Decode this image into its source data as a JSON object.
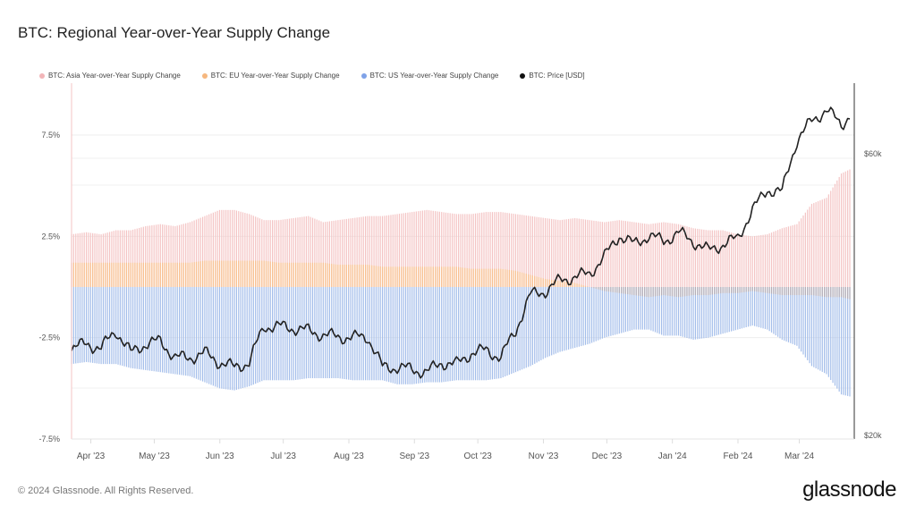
{
  "title": "BTC: Regional Year-over-Year Supply Change",
  "footer": "© 2024 Glassnode. All Rights Reserved.",
  "logo": "glassnode",
  "colors": {
    "asia": "#f4c4c4",
    "eu": "#f8c08e",
    "us": "#a3bdea",
    "price": "#222222"
  },
  "chart_data": {
    "type": "bar+line",
    "title": "BTC: Regional Year-over-Year Supply Change",
    "legend_placement": "top-left",
    "legend": [
      "BTC: Asia Year-over-Year Supply Change",
      "BTC: EU Year-over-Year Supply Change",
      "BTC: US Year-over-Year Supply Change",
      "BTC: Price [USD]"
    ],
    "x_tick_labels": [
      "Apr '23",
      "May '23",
      "Jun '23",
      "Jul '23",
      "Aug '23",
      "Sep '23",
      "Oct '23",
      "Nov '23",
      "Dec '23",
      "Jan '24",
      "Feb '24",
      "Mar '24"
    ],
    "x_range": [
      "2023-03-25",
      "2024-03-27"
    ],
    "y_left": {
      "ticks": [
        "7.5%",
        "2.5%",
        "-2.5%",
        "-7.5%"
      ],
      "tick_values": [
        7.5,
        2.5,
        -2.5,
        -7.5
      ],
      "range": [
        -7.5,
        9.5
      ],
      "unit": "%"
    },
    "y_right": {
      "ticks": [
        "$60k",
        "$20k"
      ],
      "tick_values": [
        60000,
        20000
      ],
      "scale": "log",
      "range": [
        20000,
        76000
      ]
    },
    "dates": [
      "2023-03-25",
      "2023-04-01",
      "2023-04-08",
      "2023-04-15",
      "2023-04-22",
      "2023-04-29",
      "2023-05-06",
      "2023-05-13",
      "2023-05-20",
      "2023-05-27",
      "2023-06-03",
      "2023-06-10",
      "2023-06-17",
      "2023-06-24",
      "2023-07-01",
      "2023-07-08",
      "2023-07-15",
      "2023-07-22",
      "2023-07-29",
      "2023-08-05",
      "2023-08-12",
      "2023-08-19",
      "2023-08-26",
      "2023-09-02",
      "2023-09-09",
      "2023-09-16",
      "2023-09-23",
      "2023-09-30",
      "2023-10-07",
      "2023-10-14",
      "2023-10-21",
      "2023-10-28",
      "2023-11-04",
      "2023-11-11",
      "2023-11-18",
      "2023-11-25",
      "2023-12-02",
      "2023-12-09",
      "2023-12-16",
      "2023-12-23",
      "2023-12-30",
      "2024-01-06",
      "2024-01-13",
      "2024-01-20",
      "2024-01-27",
      "2024-02-03",
      "2024-02-10",
      "2024-02-17",
      "2024-02-24",
      "2024-03-02",
      "2024-03-09",
      "2024-03-16",
      "2024-03-23",
      "2024-03-27"
    ],
    "series": [
      {
        "name": "BTC: Asia Year-over-Year Supply Change",
        "type": "bar",
        "values": [
          2.6,
          2.7,
          2.6,
          2.8,
          2.8,
          3.0,
          3.1,
          3.0,
          3.2,
          3.5,
          3.8,
          3.8,
          3.6,
          3.3,
          3.3,
          3.4,
          3.5,
          3.2,
          3.3,
          3.4,
          3.5,
          3.5,
          3.6,
          3.7,
          3.8,
          3.7,
          3.6,
          3.6,
          3.7,
          3.7,
          3.6,
          3.5,
          3.4,
          3.3,
          3.4,
          3.3,
          3.2,
          3.3,
          3.2,
          3.1,
          3.2,
          3.1,
          2.9,
          2.8,
          2.8,
          2.6,
          2.5,
          2.6,
          2.9,
          3.1,
          4.1,
          4.4,
          5.6,
          5.8
        ]
      },
      {
        "name": "BTC: EU Year-over-Year Supply Change",
        "type": "bar",
        "values": [
          1.2,
          1.2,
          1.2,
          1.2,
          1.2,
          1.2,
          1.2,
          1.2,
          1.2,
          1.3,
          1.3,
          1.3,
          1.3,
          1.3,
          1.2,
          1.2,
          1.2,
          1.2,
          1.1,
          1.1,
          1.1,
          1.0,
          1.0,
          1.0,
          1.0,
          1.0,
          1.0,
          0.9,
          0.9,
          0.9,
          0.8,
          0.6,
          0.4,
          0.3,
          0.2,
          0.0,
          -0.2,
          -0.3,
          -0.4,
          -0.5,
          -0.4,
          -0.5,
          -0.4,
          -0.4,
          -0.3,
          -0.3,
          -0.2,
          -0.3,
          -0.4,
          -0.4,
          -0.4,
          -0.5,
          -0.5,
          -0.6
        ]
      },
      {
        "name": "BTC: US Year-over-Year Supply Change",
        "type": "bar",
        "values": [
          -3.8,
          -3.7,
          -3.8,
          -3.8,
          -4.0,
          -4.1,
          -4.2,
          -4.3,
          -4.4,
          -4.7,
          -5.0,
          -5.1,
          -4.9,
          -4.6,
          -4.6,
          -4.6,
          -4.5,
          -4.5,
          -4.5,
          -4.6,
          -4.6,
          -4.6,
          -4.8,
          -4.8,
          -4.7,
          -4.7,
          -4.6,
          -4.6,
          -4.6,
          -4.5,
          -4.2,
          -3.9,
          -3.5,
          -3.2,
          -3.0,
          -2.8,
          -2.5,
          -2.3,
          -2.1,
          -2.1,
          -2.4,
          -2.4,
          -2.6,
          -2.5,
          -2.3,
          -2.1,
          -1.9,
          -2.1,
          -2.6,
          -2.9,
          -3.9,
          -4.3,
          -5.3,
          -5.4
        ]
      },
      {
        "name": "BTC: Price [USD]",
        "type": "line",
        "axis": "right",
        "values": [
          28000,
          28500,
          28000,
          30000,
          27500,
          28500,
          28800,
          27000,
          27000,
          27500,
          26500,
          26000,
          26500,
          30500,
          30500,
          30300,
          30000,
          29500,
          29300,
          29200,
          29300,
          26000,
          26000,
          25800,
          25500,
          26500,
          26300,
          27500,
          27800,
          27000,
          30000,
          34500,
          35000,
          36500,
          37000,
          37500,
          40000,
          43500,
          42000,
          43500,
          42500,
          44000,
          42500,
          41000,
          42000,
          43000,
          48000,
          52000,
          51500,
          63000,
          68000,
          71000,
          67000,
          69500
        ]
      }
    ]
  }
}
